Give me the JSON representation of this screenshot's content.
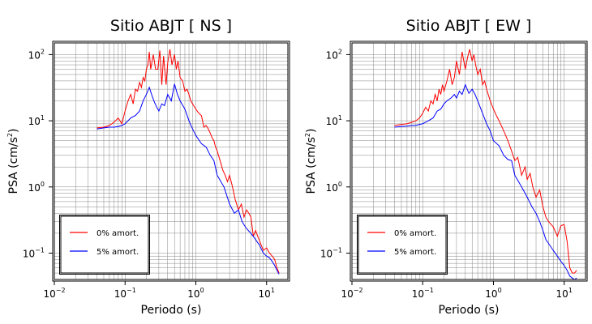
{
  "chart_data": [
    {
      "type": "line",
      "title": "Sitio ABJT [ NS ]",
      "xlabel": "Periodo (s)",
      "ylabel": "PSA (cm/s²)",
      "xscale": "log",
      "yscale": "log",
      "xlim": [
        0.01,
        20
      ],
      "ylim": [
        0.04,
        150
      ],
      "grid": true,
      "legend_position": "bottom-left",
      "x_ticks": [
        {
          "value": 0.01,
          "base": "10",
          "exp": "−2"
        },
        {
          "value": 0.1,
          "base": "10",
          "exp": "−1"
        },
        {
          "value": 1,
          "base": "10",
          "exp": "0"
        },
        {
          "value": 10,
          "base": "10",
          "exp": "1"
        }
      ],
      "y_ticks": [
        {
          "value": 0.1,
          "base": "10",
          "exp": "−1"
        },
        {
          "value": 1,
          "base": "10",
          "exp": "0"
        },
        {
          "value": 10,
          "base": "10",
          "exp": "1"
        },
        {
          "value": 100,
          "base": "10",
          "exp": "2"
        }
      ],
      "series": [
        {
          "name": "0% amort.",
          "color": "#ff0000",
          "x": [
            0.04,
            0.05,
            0.06,
            0.07,
            0.08,
            0.09,
            0.1,
            0.11,
            0.12,
            0.13,
            0.14,
            0.15,
            0.16,
            0.17,
            0.18,
            0.19,
            0.2,
            0.21,
            0.22,
            0.23,
            0.25,
            0.27,
            0.29,
            0.31,
            0.33,
            0.35,
            0.38,
            0.4,
            0.43,
            0.46,
            0.5,
            0.53,
            0.56,
            0.6,
            0.65,
            0.7,
            0.75,
            0.8,
            0.85,
            0.9,
            1.0,
            1.1,
            1.2,
            1.3,
            1.4,
            1.5,
            1.6,
            1.7,
            1.8,
            1.9,
            2.0,
            2.2,
            2.4,
            2.6,
            2.8,
            3.0,
            3.3,
            3.6,
            4.0,
            4.4,
            4.8,
            5.2,
            5.6,
            6.0,
            6.5,
            7.0,
            7.5,
            8.0,
            9.0,
            10,
            11,
            12,
            13,
            14,
            15
          ],
          "y": [
            7.8,
            8.0,
            8.5,
            9.5,
            11,
            9,
            14,
            20,
            25,
            18,
            30,
            28,
            38,
            32,
            45,
            40,
            60,
            70,
            110,
            60,
            100,
            60,
            60,
            115,
            35,
            95,
            35,
            75,
            120,
            70,
            100,
            60,
            80,
            45,
            40,
            28,
            30,
            25,
            20,
            18,
            15,
            13,
            12,
            8,
            8.5,
            7.5,
            6.5,
            5.5,
            5,
            4,
            3.5,
            2.5,
            1.8,
            1.5,
            1.2,
            1.5,
            1.0,
            0.65,
            0.45,
            0.55,
            0.35,
            0.45,
            0.4,
            0.35,
            0.18,
            0.22,
            0.18,
            0.15,
            0.11,
            0.12,
            0.1,
            0.09,
            0.08,
            0.06,
            0.05
          ]
        },
        {
          "name": "5% amort.",
          "color": "#0000ff",
          "x": [
            0.04,
            0.05,
            0.06,
            0.07,
            0.08,
            0.09,
            0.1,
            0.12,
            0.14,
            0.16,
            0.18,
            0.2,
            0.22,
            0.24,
            0.26,
            0.28,
            0.3,
            0.33,
            0.36,
            0.4,
            0.45,
            0.5,
            0.55,
            0.6,
            0.7,
            0.8,
            0.9,
            1.0,
            1.2,
            1.4,
            1.6,
            1.8,
            2.0,
            2.5,
            3.0,
            3.5,
            4.0,
            4.5,
            5.0,
            5.5,
            6.0,
            7.0,
            8.0,
            9.0,
            10,
            11,
            12,
            13,
            14,
            15
          ],
          "y": [
            7.5,
            7.8,
            8.0,
            8.0,
            8.2,
            8.5,
            9,
            11,
            12,
            14,
            20,
            25,
            32,
            24,
            19,
            16,
            14,
            18,
            17,
            25,
            20,
            36,
            25,
            20,
            15,
            10,
            7.5,
            6.0,
            4.5,
            4.0,
            3.0,
            2.5,
            1.5,
            1.0,
            0.55,
            0.4,
            0.45,
            0.3,
            0.25,
            0.22,
            0.2,
            0.16,
            0.13,
            0.1,
            0.09,
            0.085,
            0.075,
            0.065,
            0.055,
            0.048
          ]
        }
      ]
    },
    {
      "type": "line",
      "title": "Sitio ABJT [ EW ]",
      "xlabel": "Periodo (s)",
      "ylabel": "PSA (cm/s²)",
      "xscale": "log",
      "yscale": "log",
      "xlim": [
        0.01,
        20
      ],
      "ylim": [
        0.04,
        150
      ],
      "grid": true,
      "legend_position": "bottom-left",
      "x_ticks": [
        {
          "value": 0.01,
          "base": "10",
          "exp": "−2"
        },
        {
          "value": 0.1,
          "base": "10",
          "exp": "−1"
        },
        {
          "value": 1,
          "base": "10",
          "exp": "0"
        },
        {
          "value": 10,
          "base": "10",
          "exp": "1"
        }
      ],
      "y_ticks": [
        {
          "value": 0.1,
          "base": "10",
          "exp": "−1"
        },
        {
          "value": 1,
          "base": "10",
          "exp": "0"
        },
        {
          "value": 10,
          "base": "10",
          "exp": "1"
        },
        {
          "value": 100,
          "base": "10",
          "exp": "2"
        }
      ],
      "series": [
        {
          "name": "0% amort.",
          "color": "#ff0000",
          "x": [
            0.04,
            0.05,
            0.06,
            0.07,
            0.08,
            0.09,
            0.1,
            0.11,
            0.12,
            0.13,
            0.14,
            0.15,
            0.16,
            0.17,
            0.18,
            0.19,
            0.2,
            0.22,
            0.24,
            0.26,
            0.28,
            0.3,
            0.33,
            0.36,
            0.4,
            0.43,
            0.46,
            0.5,
            0.53,
            0.56,
            0.6,
            0.65,
            0.7,
            0.75,
            0.8,
            0.9,
            1.0,
            1.1,
            1.2,
            1.4,
            1.6,
            1.8,
            2.0,
            2.2,
            2.5,
            2.8,
            3.0,
            3.3,
            3.6,
            4.0,
            4.5,
            5.0,
            5.5,
            6.0,
            7.0,
            8.0,
            9.0,
            10,
            11,
            12,
            13,
            14,
            15
          ],
          "y": [
            8.5,
            8.8,
            9.0,
            9.5,
            10,
            11,
            13,
            16,
            14,
            20,
            18,
            25,
            20,
            30,
            25,
            35,
            28,
            40,
            60,
            35,
            45,
            80,
            50,
            110,
            60,
            90,
            120,
            80,
            100,
            70,
            50,
            60,
            35,
            40,
            30,
            20,
            15,
            12,
            10,
            7,
            5,
            3.5,
            2.5,
            2.8,
            1.5,
            2.0,
            1.3,
            1.6,
            1.0,
            0.7,
            0.9,
            0.5,
            0.35,
            0.3,
            0.25,
            0.18,
            0.26,
            0.27,
            0.15,
            0.06,
            0.05,
            0.05,
            0.055
          ]
        },
        {
          "name": "5% amort.",
          "color": "#0000ff",
          "x": [
            0.04,
            0.05,
            0.06,
            0.07,
            0.08,
            0.09,
            0.1,
            0.12,
            0.14,
            0.16,
            0.18,
            0.2,
            0.22,
            0.25,
            0.28,
            0.3,
            0.33,
            0.36,
            0.4,
            0.45,
            0.5,
            0.55,
            0.6,
            0.7,
            0.8,
            0.9,
            1.0,
            1.2,
            1.4,
            1.6,
            1.8,
            2.0,
            2.5,
            3.0,
            3.5,
            4.0,
            4.5,
            5.0,
            5.5,
            6.0,
            7.0,
            8.0,
            9.0,
            10,
            11,
            12,
            13,
            14,
            15
          ],
          "y": [
            8.0,
            8.2,
            8.3,
            8.5,
            8.5,
            8.8,
            9,
            10,
            11,
            14,
            15,
            18,
            20,
            22,
            25,
            22,
            28,
            25,
            35,
            26,
            30,
            25,
            20,
            13,
            9,
            7,
            5,
            4.2,
            3.0,
            2.6,
            2.5,
            1.5,
            1.0,
            0.7,
            0.5,
            0.4,
            0.3,
            0.22,
            0.16,
            0.14,
            0.11,
            0.09,
            0.075,
            0.065,
            0.055,
            0.045,
            0.042,
            0.04,
            0.042
          ]
        }
      ]
    }
  ]
}
